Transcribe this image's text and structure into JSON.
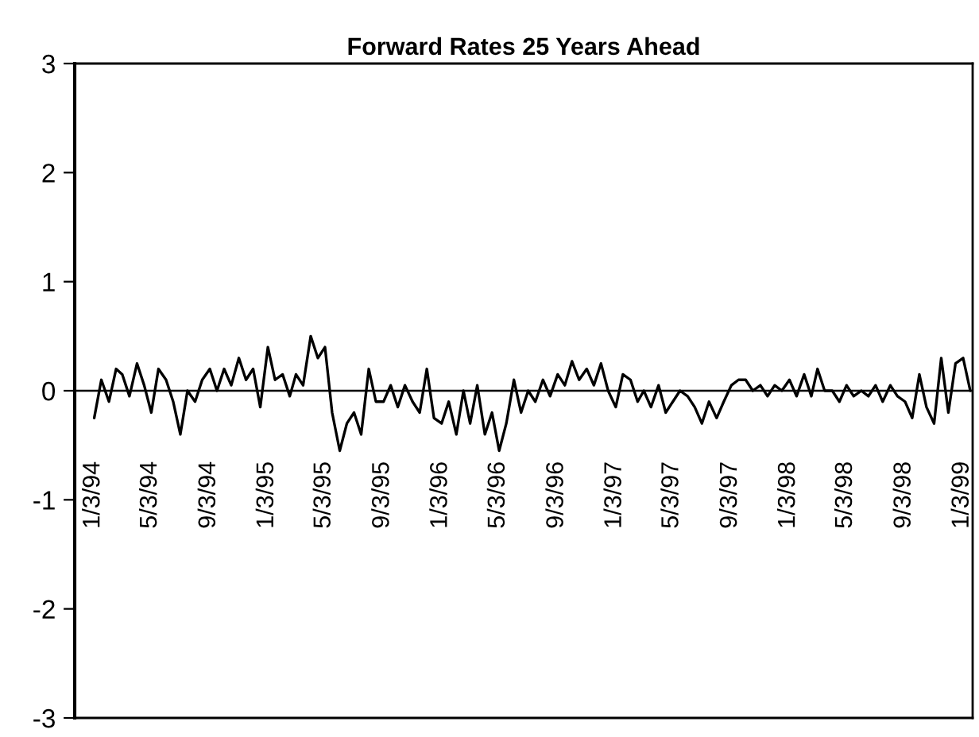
{
  "chart_data": {
    "type": "line",
    "title": "Forward Rates 25 Years Ahead",
    "x": [
      "1994-01-05",
      "1994-01-20",
      "1994-02-05",
      "1994-02-20",
      "1994-03-05",
      "1994-03-20",
      "1994-04-05",
      "1994-04-20",
      "1994-05-05",
      "1994-05-20",
      "1994-06-05",
      "1994-06-20",
      "1994-07-05",
      "1994-07-20",
      "1994-08-05",
      "1994-08-20",
      "1994-09-05",
      "1994-09-20",
      "1994-10-05",
      "1994-10-20",
      "1994-11-05",
      "1994-11-20",
      "1994-12-05",
      "1994-12-20",
      "1995-01-05",
      "1995-01-20",
      "1995-02-05",
      "1995-02-20",
      "1995-03-05",
      "1995-03-20",
      "1995-04-05",
      "1995-04-20",
      "1995-05-05",
      "1995-05-20",
      "1995-06-05",
      "1995-06-20",
      "1995-07-05",
      "1995-07-20",
      "1995-08-05",
      "1995-08-20",
      "1995-09-05",
      "1995-09-20",
      "1995-10-05",
      "1995-10-20",
      "1995-11-05",
      "1995-11-20",
      "1995-12-05",
      "1995-12-20",
      "1996-01-05",
      "1996-01-20",
      "1996-02-05",
      "1996-02-20",
      "1996-03-05",
      "1996-03-20",
      "1996-04-05",
      "1996-04-20",
      "1996-05-05",
      "1996-05-20",
      "1996-06-05",
      "1996-06-20",
      "1996-07-05",
      "1996-07-20",
      "1996-08-05",
      "1996-08-20",
      "1996-09-05",
      "1996-09-20",
      "1996-10-05",
      "1996-10-20",
      "1996-11-05",
      "1996-11-20",
      "1996-12-05",
      "1996-12-20",
      "1997-01-05",
      "1997-01-20",
      "1997-02-05",
      "1997-02-20",
      "1997-03-05",
      "1997-03-20",
      "1997-04-05",
      "1997-04-20",
      "1997-05-05",
      "1997-05-20",
      "1997-06-05",
      "1997-06-20",
      "1997-07-05",
      "1997-07-20",
      "1997-08-05",
      "1997-08-20",
      "1997-09-05",
      "1997-09-20",
      "1997-10-05",
      "1997-10-20",
      "1997-11-05",
      "1997-11-20",
      "1997-12-05",
      "1997-12-20",
      "1998-01-05",
      "1998-01-20",
      "1998-02-05",
      "1998-02-20",
      "1998-03-05",
      "1998-03-20",
      "1998-04-05",
      "1998-04-20",
      "1998-05-05",
      "1998-05-20",
      "1998-06-05",
      "1998-06-20",
      "1998-07-05",
      "1998-07-20",
      "1998-08-05",
      "1998-08-20",
      "1998-09-05",
      "1998-09-20",
      "1998-10-05",
      "1998-10-20",
      "1998-11-05",
      "1998-11-20",
      "1998-12-05",
      "1998-12-20",
      "1999-01-05",
      "1999-01-20"
    ],
    "series": [
      {
        "color": "#000000",
        "values": [
          -0.25,
          0.1,
          -0.1,
          0.2,
          0.15,
          -0.05,
          0.25,
          0.05,
          -0.2,
          0.2,
          0.1,
          -0.1,
          -0.4,
          0.0,
          -0.1,
          0.1,
          0.2,
          0.0,
          0.2,
          0.05,
          0.3,
          0.1,
          0.2,
          -0.15,
          0.4,
          0.1,
          0.15,
          -0.05,
          0.15,
          0.05,
          0.5,
          0.3,
          0.4,
          -0.2,
          -0.55,
          -0.3,
          -0.2,
          -0.4,
          0.2,
          -0.1,
          -0.1,
          0.05,
          -0.15,
          0.05,
          -0.1,
          -0.2,
          0.2,
          -0.25,
          -0.3,
          -0.1,
          -0.4,
          0.0,
          -0.3,
          0.05,
          -0.4,
          -0.2,
          -0.55,
          -0.3,
          0.1,
          -0.2,
          0.0,
          -0.1,
          0.1,
          -0.05,
          0.15,
          0.05,
          0.27,
          0.1,
          0.2,
          0.05,
          0.25,
          0.0,
          -0.15,
          0.15,
          0.1,
          -0.1,
          0.0,
          -0.15,
          0.05,
          -0.2,
          -0.1,
          0.0,
          -0.05,
          -0.15,
          -0.3,
          -0.1,
          -0.25,
          -0.1,
          0.05,
          0.1,
          0.1,
          0.0,
          0.05,
          -0.05,
          0.05,
          0.0,
          0.1,
          -0.05,
          0.15,
          -0.05,
          0.2,
          0.0,
          0.0,
          -0.1,
          0.05,
          -0.05,
          0.0,
          -0.05,
          0.05,
          -0.1,
          0.05,
          -0.05,
          -0.1,
          -0.25,
          0.15,
          -0.15,
          -0.3,
          0.3,
          -0.2,
          0.25,
          0.3,
          0.0
        ]
      }
    ],
    "xlim": [
      "1993-11-25",
      "1999-01-25"
    ],
    "xticks": [
      {
        "value": "1994-01-03",
        "label": "1/3/94"
      },
      {
        "value": "1994-05-03",
        "label": "5/3/94"
      },
      {
        "value": "1994-09-03",
        "label": "9/3/94"
      },
      {
        "value": "1995-01-03",
        "label": "1/3/95"
      },
      {
        "value": "1995-05-03",
        "label": "5/3/95"
      },
      {
        "value": "1995-09-03",
        "label": "9/3/95"
      },
      {
        "value": "1996-01-03",
        "label": "1/3/96"
      },
      {
        "value": "1996-05-03",
        "label": "5/3/96"
      },
      {
        "value": "1996-09-03",
        "label": "9/3/96"
      },
      {
        "value": "1997-01-03",
        "label": "1/3/97"
      },
      {
        "value": "1997-05-03",
        "label": "5/3/97"
      },
      {
        "value": "1997-09-03",
        "label": "9/3/97"
      },
      {
        "value": "1998-01-03",
        "label": "1/3/98"
      },
      {
        "value": "1998-05-03",
        "label": "5/3/98"
      },
      {
        "value": "1998-09-03",
        "label": "9/3/98"
      },
      {
        "value": "1999-01-03",
        "label": "1/3/99"
      }
    ],
    "ylim": [
      -3,
      3
    ],
    "yticks": [
      -3,
      -2,
      -1,
      0,
      1,
      2,
      3
    ],
    "ref_lines": [
      {
        "axis": "y",
        "value": 0,
        "color": "#000000"
      }
    ],
    "grid": false,
    "legend": false,
    "marker": "none",
    "line_style": "solid"
  }
}
